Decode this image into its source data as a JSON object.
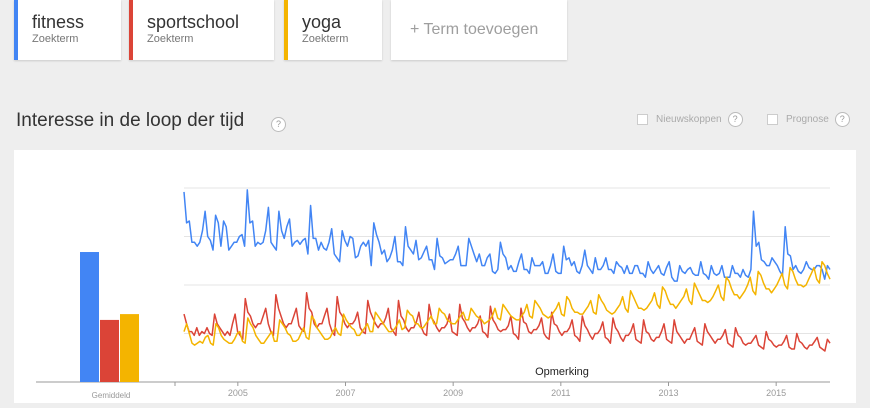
{
  "terms": [
    {
      "name": "fitness",
      "sub": "Zoekterm",
      "color": "#4285f4"
    },
    {
      "name": "sportschool",
      "sub": "Zoekterm",
      "color": "#db4437"
    },
    {
      "name": "yoga",
      "sub": "Zoekterm",
      "color": "#f4b400"
    }
  ],
  "add_term": "+ Term toevoegen",
  "section": {
    "title": "Interesse in de loop der tijd",
    "help": "?"
  },
  "options": {
    "news": "Nieuwskoppen",
    "forecast": "Prognose"
  },
  "chart_data": {
    "type": "line",
    "x_start": 2004,
    "x_end": 2016,
    "ylim": [
      0,
      100
    ],
    "x_ticks": [
      "2005",
      "2007",
      "2009",
      "2011",
      "2013",
      "2015"
    ],
    "annotation": "Opmerking",
    "average_bars": {
      "label": "Gemiddeld",
      "values": [
        67,
        32,
        35
      ]
    },
    "series": [
      {
        "name": "fitness",
        "color": "#4285f4",
        "values": [
          98,
          82,
          83,
          72,
          72,
          70,
          72,
          78,
          88,
          75,
          73,
          68,
          86,
          82,
          70,
          83,
          80,
          68,
          70,
          72,
          72,
          75,
          76,
          70,
          99,
          82,
          83,
          70,
          72,
          71,
          72,
          78,
          90,
          72,
          70,
          68,
          88,
          78,
          74,
          80,
          84,
          70,
          72,
          73,
          71,
          73,
          74,
          66,
          91,
          74,
          74,
          68,
          72,
          69,
          68,
          72,
          79,
          66,
          64,
          62,
          78,
          73,
          70,
          75,
          74,
          64,
          65,
          70,
          72,
          70,
          73,
          60,
          82,
          76,
          72,
          66,
          68,
          62,
          64,
          68,
          75,
          62,
          62,
          60,
          80,
          70,
          68,
          66,
          73,
          63,
          64,
          67,
          70,
          63,
          63,
          58,
          74,
          65,
          64,
          61,
          62,
          63,
          63,
          66,
          70,
          60,
          60,
          60,
          74,
          70,
          66,
          62,
          66,
          60,
          60,
          64,
          66,
          57,
          56,
          58,
          72,
          66,
          64,
          58,
          60,
          57,
          57,
          62,
          66,
          58,
          58,
          56,
          64,
          60,
          60,
          60,
          62,
          56,
          56,
          60,
          66,
          57,
          56,
          56,
          70,
          63,
          64,
          60,
          62,
          57,
          56,
          60,
          68,
          60,
          58,
          56,
          64,
          58,
          58,
          60,
          64,
          58,
          58,
          56,
          62,
          60,
          59,
          56,
          60,
          56,
          56,
          60,
          60,
          56,
          56,
          54,
          62,
          58,
          56,
          58,
          60,
          56,
          55,
          59,
          62,
          54,
          52,
          52,
          60,
          57,
          56,
          58,
          59,
          56,
          55,
          55,
          62,
          56,
          55,
          53,
          60,
          56,
          55,
          56,
          60,
          54,
          54,
          54,
          60,
          56,
          56,
          54,
          58,
          55,
          54,
          58,
          88,
          70,
          72,
          63,
          62,
          60,
          60,
          64,
          62,
          60,
          57,
          55,
          80,
          66,
          65,
          58,
          60,
          57,
          56,
          58,
          62,
          59,
          58,
          58,
          60,
          60,
          58,
          53,
          60,
          58
        ]
      },
      {
        "name": "sportschool",
        "color": "#db4437",
        "values": [
          35,
          30,
          26,
          26,
          24,
          28,
          24,
          26,
          25,
          28,
          25,
          24,
          35,
          30,
          28,
          26,
          24,
          26,
          24,
          30,
          35,
          26,
          24,
          22,
          43,
          36,
          34,
          30,
          28,
          30,
          30,
          34,
          38,
          30,
          26,
          24,
          45,
          38,
          34,
          30,
          28,
          30,
          30,
          34,
          38,
          29,
          27,
          26,
          46,
          38,
          36,
          30,
          28,
          30,
          30,
          34,
          38,
          30,
          26,
          24,
          44,
          36,
          34,
          30,
          28,
          30,
          30,
          32,
          36,
          28,
          26,
          25,
          42,
          36,
          33,
          30,
          28,
          30,
          30,
          33,
          38,
          28,
          26,
          24,
          42,
          34,
          32,
          28,
          26,
          28,
          28,
          31,
          36,
          28,
          25,
          24,
          40,
          33,
          31,
          28,
          26,
          28,
          28,
          30,
          35,
          26,
          25,
          24,
          40,
          33,
          31,
          28,
          26,
          28,
          28,
          30,
          34,
          26,
          25,
          23,
          39,
          32,
          30,
          27,
          26,
          27,
          27,
          29,
          34,
          25,
          24,
          22,
          38,
          31,
          30,
          26,
          25,
          27,
          27,
          29,
          33,
          25,
          23,
          22,
          36,
          30,
          29,
          26,
          24,
          26,
          26,
          28,
          32,
          24,
          23,
          21,
          34,
          29,
          27,
          24,
          22,
          25,
          25,
          27,
          31,
          23,
          22,
          20,
          33,
          28,
          26,
          23,
          21,
          24,
          24,
          26,
          30,
          22,
          21,
          20,
          32,
          26,
          25,
          22,
          21,
          23,
          23,
          26,
          30,
          22,
          21,
          20,
          32,
          26,
          24,
          22,
          20,
          22,
          22,
          25,
          28,
          21,
          20,
          19,
          30,
          26,
          24,
          22,
          20,
          22,
          22,
          24,
          27,
          20,
          19,
          18,
          28,
          24,
          23,
          20,
          19,
          20,
          20,
          22,
          24,
          19,
          18,
          17,
          26,
          22,
          21,
          19,
          18,
          19,
          19,
          21,
          24,
          18,
          17,
          17,
          25,
          21,
          20,
          18,
          17,
          19,
          19,
          21,
          23,
          18,
          17,
          16,
          22,
          20
        ]
      },
      {
        "name": "yoga",
        "color": "#f4b400",
        "values": [
          26,
          30,
          25,
          20,
          19,
          20,
          21,
          20,
          23,
          24,
          20,
          19,
          30,
          28,
          24,
          22,
          21,
          20,
          20,
          22,
          25,
          26,
          21,
          20,
          33,
          30,
          28,
          24,
          22,
          20,
          20,
          22,
          24,
          26,
          21,
          21,
          32,
          30,
          28,
          25,
          24,
          21,
          21,
          22,
          25,
          28,
          23,
          22,
          34,
          32,
          28,
          26,
          24,
          22,
          22,
          23,
          26,
          28,
          25,
          24,
          35,
          32,
          30,
          28,
          27,
          24,
          24,
          26,
          28,
          30,
          26,
          26,
          36,
          34,
          32,
          30,
          28,
          26,
          26,
          27,
          29,
          32,
          27,
          28,
          37,
          35,
          34,
          30,
          30,
          28,
          28,
          30,
          32,
          34,
          30,
          30,
          38,
          36,
          35,
          32,
          31,
          30,
          30,
          32,
          34,
          36,
          32,
          32,
          38,
          36,
          34,
          33,
          32,
          30,
          31,
          32,
          34,
          38,
          33,
          32,
          40,
          38,
          36,
          34,
          33,
          32,
          32,
          34,
          36,
          40,
          34,
          33,
          42,
          40,
          38,
          35,
          34,
          33,
          34,
          36,
          38,
          41,
          35,
          34,
          44,
          42,
          38,
          36,
          36,
          35,
          35,
          37,
          39,
          42,
          36,
          35,
          45,
          42,
          40,
          37,
          36,
          35,
          36,
          38,
          40,
          44,
          38,
          36,
          47,
          44,
          41,
          38,
          38,
          37,
          38,
          40,
          42,
          46,
          40,
          38,
          49,
          47,
          43,
          40,
          40,
          38,
          40,
          42,
          44,
          48,
          42,
          40,
          51,
          48,
          45,
          42,
          42,
          41,
          42,
          44,
          47,
          50,
          44,
          42,
          54,
          52,
          48,
          45,
          45,
          43,
          45,
          47,
          50,
          54,
          47,
          45,
          57,
          55,
          51,
          48,
          48,
          46,
          48,
          50,
          53,
          56,
          50,
          48,
          59,
          57,
          53,
          50,
          50,
          49,
          50,
          53,
          56,
          59,
          53,
          51,
          62,
          60,
          56,
          53
        ]
      }
    ]
  }
}
